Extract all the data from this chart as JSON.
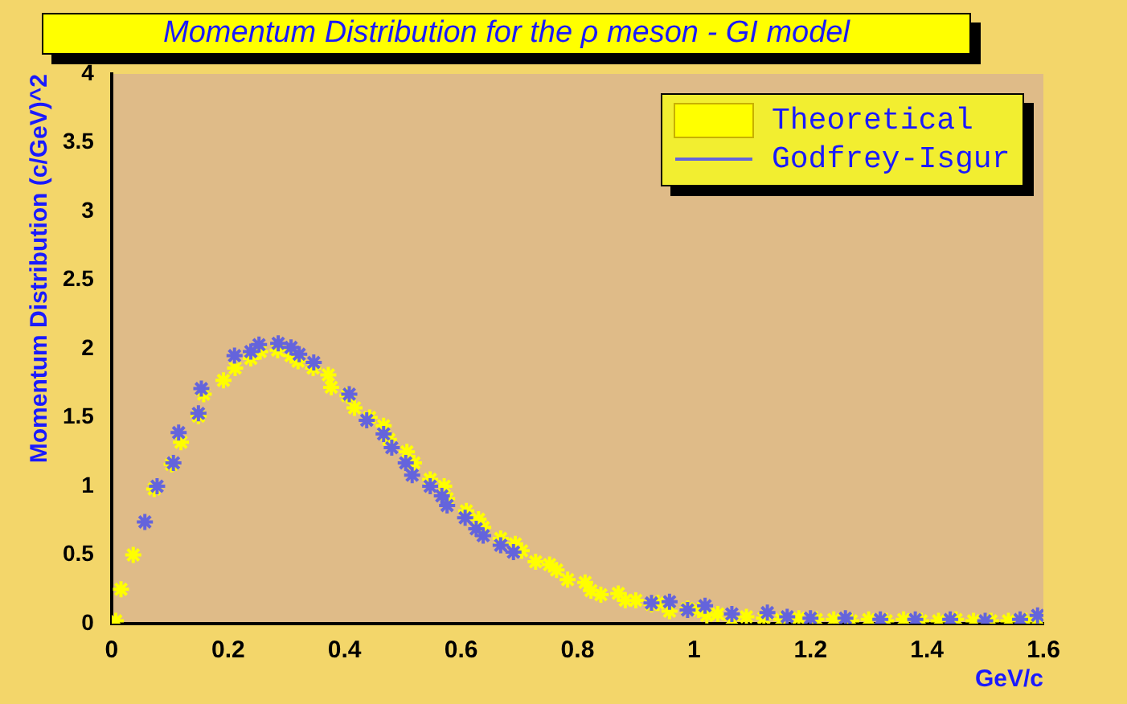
{
  "chart_data": {
    "type": "scatter",
    "title": "Momentum Distribution for the ρ meson - GI model",
    "xlabel": "GeV/c",
    "ylabel": "Momentum Distribution (c/GeV)^2",
    "xlim": [
      0,
      1.6
    ],
    "xticks": [
      0,
      0.2,
      0.4,
      0.6,
      0.8,
      1,
      1.2,
      1.4,
      1.6
    ],
    "ylim": [
      0,
      4
    ],
    "yticks": [
      0,
      0.5,
      1,
      1.5,
      2,
      2.5,
      3,
      3.5,
      4
    ],
    "legend": "top right",
    "marker": "cross",
    "grid": false,
    "series": [
      {
        "name": "Theoretical",
        "color": "#ffff00",
        "x": [
          0.007,
          0.016,
          0.037,
          0.073,
          0.103,
          0.119,
          0.149,
          0.158,
          0.192,
          0.212,
          0.239,
          0.255,
          0.285,
          0.308,
          0.32,
          0.346,
          0.372,
          0.377,
          0.405,
          0.417,
          0.443,
          0.467,
          0.476,
          0.507,
          0.519,
          0.547,
          0.571,
          0.576,
          0.609,
          0.63,
          0.638,
          0.668,
          0.693,
          0.704,
          0.728,
          0.752,
          0.764,
          0.783,
          0.813,
          0.823,
          0.84,
          0.87,
          0.882,
          0.9,
          0.927,
          0.938,
          0.958,
          0.989,
          1.008,
          1.022,
          1.041,
          1.065,
          1.09,
          1.12,
          1.15,
          1.18,
          1.21,
          1.24,
          1.27,
          1.3,
          1.33,
          1.36,
          1.39,
          1.42,
          1.45,
          1.48,
          1.51,
          1.54,
          1.57,
          1.59
        ],
        "values": [
          0.02,
          0.25,
          0.5,
          0.98,
          1.16,
          1.32,
          1.51,
          1.67,
          1.77,
          1.86,
          1.93,
          1.98,
          1.99,
          1.95,
          1.91,
          1.86,
          1.81,
          1.72,
          1.66,
          1.57,
          1.5,
          1.44,
          1.34,
          1.25,
          1.17,
          1.05,
          1,
          0.91,
          0.82,
          0.76,
          0.7,
          0.62,
          0.58,
          0.53,
          0.45,
          0.43,
          0.39,
          0.32,
          0.3,
          0.24,
          0.21,
          0.22,
          0.17,
          0.17,
          0.14,
          0.15,
          0.09,
          0.11,
          0.1,
          0.06,
          0.07,
          0.03,
          0.05,
          0.04,
          0.03,
          0.04,
          0.03,
          0.03,
          0.02,
          0.03,
          0.02,
          0.03,
          0.02,
          0.02,
          0.03,
          0.02,
          0.02,
          0.02,
          0.02,
          0.03
        ]
      },
      {
        "name": "Godfrey-Isgur",
        "color": "#6464dc",
        "x": [
          0.057,
          0.078,
          0.106,
          0.115,
          0.149,
          0.154,
          0.211,
          0.239,
          0.253,
          0.286,
          0.308,
          0.322,
          0.347,
          0.408,
          0.438,
          0.467,
          0.481,
          0.505,
          0.516,
          0.547,
          0.567,
          0.576,
          0.607,
          0.626,
          0.638,
          0.668,
          0.69,
          0.927,
          0.958,
          0.989,
          1.019,
          1.065,
          1.126,
          1.16,
          1.2,
          1.26,
          1.32,
          1.38,
          1.44,
          1.5,
          1.56,
          1.59
        ],
        "values": [
          0.74,
          1,
          1.17,
          1.39,
          1.53,
          1.71,
          1.95,
          1.98,
          2.03,
          2.04,
          2.01,
          1.96,
          1.9,
          1.67,
          1.48,
          1.38,
          1.28,
          1.17,
          1.08,
          1,
          0.93,
          0.86,
          0.77,
          0.69,
          0.64,
          0.57,
          0.52,
          0.15,
          0.16,
          0.1,
          0.13,
          0.07,
          0.08,
          0.05,
          0.04,
          0.04,
          0.03,
          0.03,
          0.03,
          0.02,
          0.03,
          0.06
        ]
      }
    ]
  }
}
